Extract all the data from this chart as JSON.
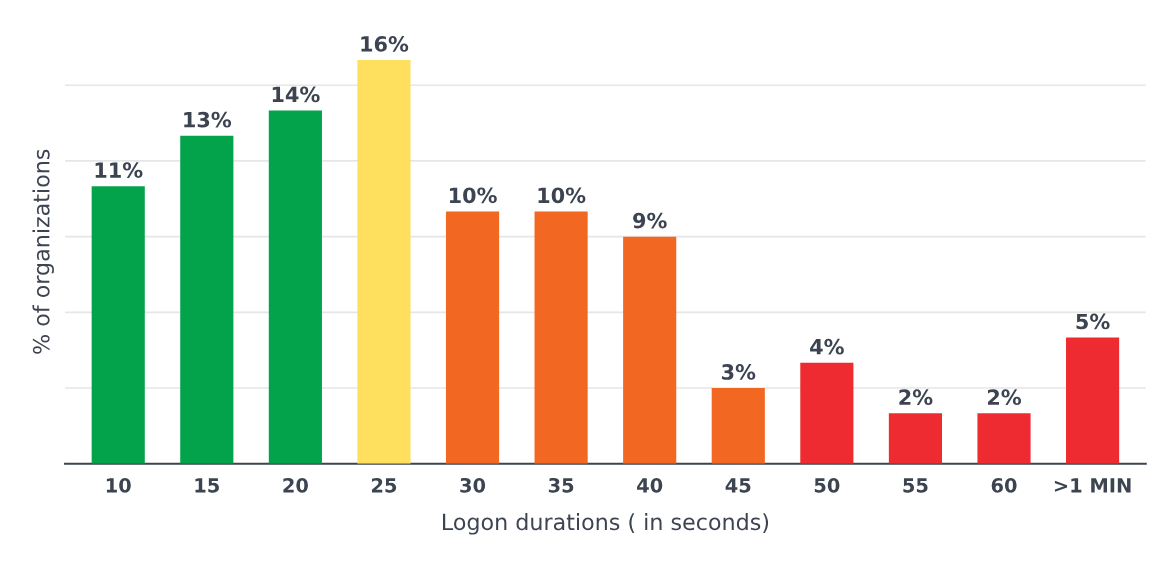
{
  "chart_data": {
    "type": "bar",
    "xlabel": "Logon durations ( in seconds)",
    "ylabel": "% of organizations",
    "categories": [
      "10",
      "15",
      "20",
      "25",
      "30",
      "35",
      "40",
      "45",
      "50",
      "55",
      "60",
      ">1 MIN"
    ],
    "values": [
      11,
      13,
      14,
      16,
      10,
      10,
      9,
      3,
      4,
      2,
      2,
      5
    ],
    "colors": [
      "#03a34b",
      "#03a34b",
      "#03a34b",
      "#ffdf5e",
      "#f26722",
      "#f26722",
      "#f26722",
      "#f26722",
      "#ee2b30",
      "#ee2b30",
      "#ee2b30",
      "#ee2b30"
    ],
    "value_labels": [
      "11%",
      "13%",
      "14%",
      "16%",
      "10%",
      "10%",
      "9%",
      "3%",
      "4%",
      "2%",
      "2%",
      "5%"
    ],
    "yticks": [
      {
        "value": 0,
        "label": null
      },
      {
        "value": 3,
        "label": null
      },
      {
        "value": 6,
        "label": null
      },
      {
        "value": 9,
        "label": null
      },
      {
        "value": 12,
        "label": null
      },
      {
        "value": 15,
        "label": null
      }
    ],
    "grid": "y",
    "tick_labels": "x"
  }
}
